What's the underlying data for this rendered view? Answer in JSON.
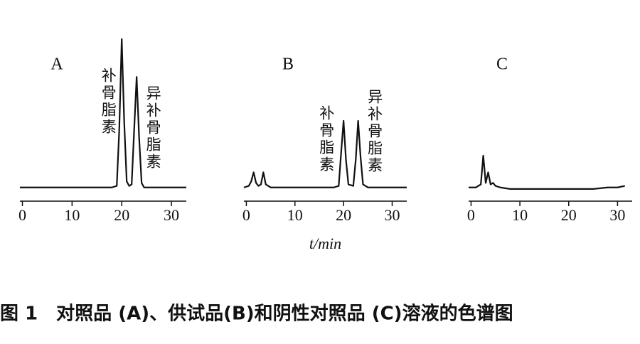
{
  "chart_data": [
    {
      "type": "line",
      "title": "A",
      "x": [
        -0.5,
        5,
        10,
        15,
        18,
        19,
        19.5,
        20,
        20.5,
        21,
        21.5,
        22,
        22.5,
        23,
        23.5,
        24,
        24.5,
        25,
        28,
        33
      ],
      "series": [
        {
          "color": "#111111",
          "values": [
            2,
            2,
            2,
            2,
            2,
            3,
            40,
            100,
            45,
            6,
            3,
            4,
            40,
            75,
            35,
            5,
            2,
            2,
            2,
            2
          ]
        }
      ],
      "xlim": [
        -0.5,
        33
      ],
      "xticks": [
        0,
        10,
        20,
        30
      ],
      "ylim": [
        0,
        100
      ],
      "annotations": [
        {
          "text": "补骨脂素",
          "x": 20
        },
        {
          "text": "异补骨脂素",
          "x": 23
        }
      ]
    },
    {
      "type": "line",
      "title": "B",
      "xlabel": "t/min",
      "x": [
        -0.5,
        0.5,
        1,
        1.5,
        2,
        2.5,
        3,
        3.5,
        4,
        5,
        10,
        15,
        18,
        19,
        19.5,
        20,
        20.5,
        21,
        22,
        22.5,
        23,
        23.5,
        24,
        25,
        28,
        33
      ],
      "series": [
        {
          "color": "#111111",
          "values": [
            2,
            3,
            6,
            12,
            5,
            3,
            4,
            12,
            4,
            2,
            2,
            2,
            2,
            3,
            25,
            46,
            20,
            4,
            3,
            20,
            46,
            22,
            4,
            2,
            2,
            2
          ]
        }
      ],
      "xlim": [
        -0.5,
        33
      ],
      "xticks": [
        0,
        10,
        20,
        30
      ],
      "ylim": [
        0,
        100
      ],
      "annotations": [
        {
          "text": "补骨脂素",
          "x": 19.5
        },
        {
          "text": "异补骨脂素",
          "x": 23
        }
      ]
    },
    {
      "type": "line",
      "title": "C",
      "x": [
        -0.5,
        1,
        2,
        2.5,
        3,
        3.5,
        4,
        4.5,
        5,
        6,
        8,
        10,
        15,
        20,
        25,
        28,
        30,
        31.5
      ],
      "series": [
        {
          "color": "#111111",
          "values": [
            2,
            2,
            4,
            23,
            5,
            12,
            4,
            5,
            3,
            2,
            1,
            1,
            1,
            1,
            1,
            2,
            2,
            3
          ]
        }
      ],
      "xlim": [
        -0.5,
        33
      ],
      "xticks": [
        0,
        10,
        20,
        30
      ],
      "ylim": [
        0,
        100
      ]
    }
  ],
  "caption": "图 1　对照品 (A)、供试品(B)和阴性对照品 (C)溶液的色谱图"
}
